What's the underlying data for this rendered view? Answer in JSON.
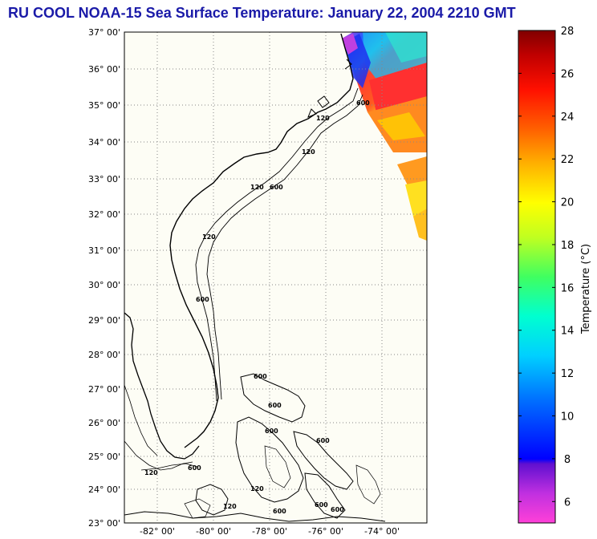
{
  "title": "RU COOL  NOAA-15  Sea Surface Temperature:  January 22, 2004 2210 GMT",
  "map": {
    "lat_labels": [
      "37° 00'",
      "36° 00'",
      "35° 00'",
      "34° 00'",
      "33° 00'",
      "32° 00'",
      "31° 00'",
      "30° 00'",
      "29° 00'",
      "28° 00'",
      "27° 00'",
      "26° 00'",
      "25° 00'",
      "24° 00'",
      "23° 00'"
    ],
    "lon_labels": [
      "-82° 00'",
      "-80° 00'",
      "-78° 00'",
      "-76° 00'",
      "-74° 00'"
    ],
    "isobath_labels": [
      "120",
      "600"
    ],
    "land_color": "#fdfdf5",
    "grid_color": "#888888"
  },
  "colorbar": {
    "label": "Temperature (°C)",
    "min": 5,
    "max": 28,
    "tick_labels": [
      "28",
      "26",
      "24",
      "22",
      "20",
      "18",
      "16",
      "14",
      "12",
      "10",
      "8",
      "6"
    ],
    "tick_values": [
      28,
      26,
      24,
      22,
      20,
      18,
      16,
      14,
      12,
      10,
      8,
      6
    ]
  }
}
